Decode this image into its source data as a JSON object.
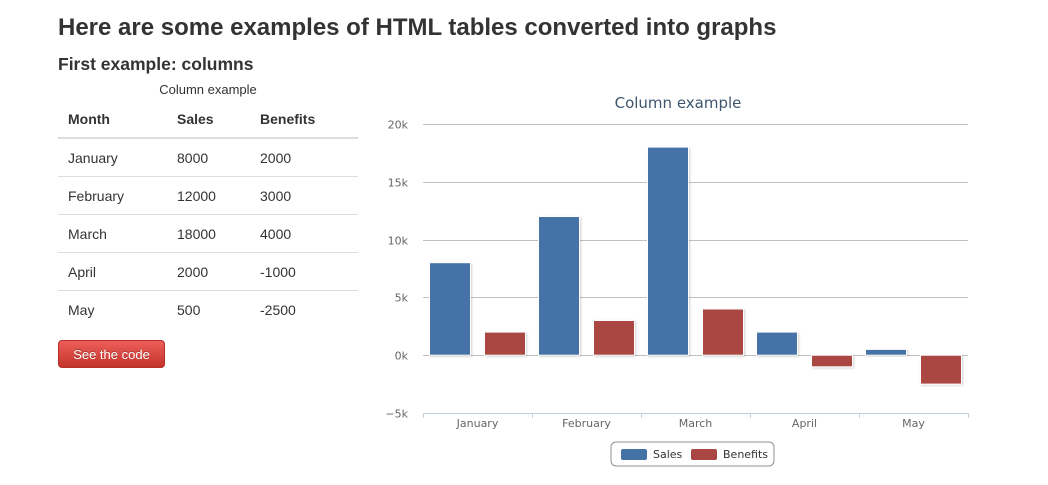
{
  "page": {
    "title": "Here are some examples of HTML tables converted into graphs",
    "section_title": "First example: columns"
  },
  "table": {
    "caption": "Column example",
    "headers": [
      "Month",
      "Sales",
      "Benefits"
    ],
    "rows": [
      [
        "January",
        "8000",
        "2000"
      ],
      [
        "February",
        "12000",
        "3000"
      ],
      [
        "March",
        "18000",
        "4000"
      ],
      [
        "April",
        "2000",
        "-1000"
      ],
      [
        "May",
        "500",
        "-2500"
      ]
    ]
  },
  "button": {
    "label": "See the code"
  },
  "colors": {
    "sales": "#4572a7",
    "benefits": "#aa4643",
    "button": "#da4f49"
  },
  "chart_data": {
    "type": "bar",
    "title": "Column example",
    "categories": [
      "January",
      "February",
      "March",
      "April",
      "May"
    ],
    "series": [
      {
        "name": "Sales",
        "values": [
          8000,
          12000,
          18000,
          2000,
          500
        ]
      },
      {
        "name": "Benefits",
        "values": [
          2000,
          3000,
          4000,
          -1000,
          -2500
        ]
      }
    ],
    "ylim": [
      -5000,
      20000
    ],
    "yticks": [
      20000,
      15000,
      10000,
      5000,
      0,
      -5000
    ],
    "ytick_labels": [
      "20k",
      "15k",
      "10k",
      "5k",
      "0k",
      "−5k"
    ],
    "grid": true,
    "legend_position": "bottom-center"
  }
}
